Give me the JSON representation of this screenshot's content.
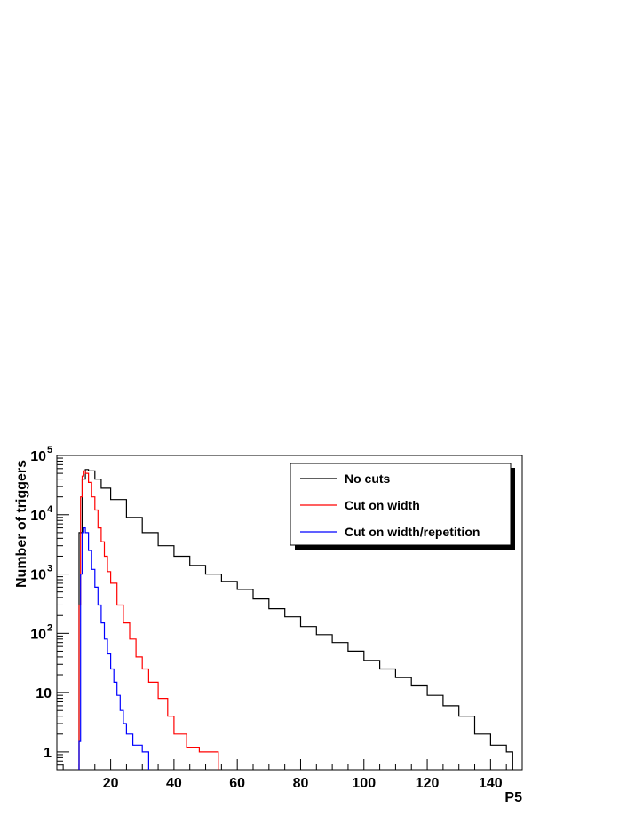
{
  "chart_data": {
    "type": "line",
    "title": "",
    "xlabel": "P5",
    "ylabel": "Number of triggers",
    "xlim": [
      3,
      150
    ],
    "ylim": [
      0.5,
      100000
    ],
    "y_scale": "log",
    "grid": false,
    "legend_position": "top-right",
    "x_ticks": [
      20,
      40,
      60,
      80,
      100,
      120,
      140
    ],
    "x_tick_labels": [
      "20",
      "40",
      "60",
      "80",
      "100",
      "120",
      "140"
    ],
    "y_ticks": [
      {
        "value": 1,
        "base": "1",
        "exp": ""
      },
      {
        "value": 10,
        "base": "10",
        "exp": ""
      },
      {
        "value": 100,
        "base": "10",
        "exp": "2"
      },
      {
        "value": 1000,
        "base": "10",
        "exp": "3"
      },
      {
        "value": 10000,
        "base": "10",
        "exp": "4"
      },
      {
        "value": 100000,
        "base": "10",
        "exp": "5"
      }
    ],
    "series": [
      {
        "name": "No cuts",
        "color": "#000000",
        "points": [
          [
            10,
            5000
          ],
          [
            11,
            40000
          ],
          [
            12,
            58000
          ],
          [
            13,
            55000
          ],
          [
            15,
            40000
          ],
          [
            17,
            28000
          ],
          [
            20,
            18000
          ],
          [
            25,
            9000
          ],
          [
            30,
            5000
          ],
          [
            35,
            3000
          ],
          [
            40,
            2000
          ],
          [
            45,
            1400
          ],
          [
            50,
            1000
          ],
          [
            55,
            750
          ],
          [
            60,
            550
          ],
          [
            65,
            380
          ],
          [
            70,
            260
          ],
          [
            75,
            190
          ],
          [
            80,
            130
          ],
          [
            85,
            95
          ],
          [
            90,
            70
          ],
          [
            95,
            50
          ],
          [
            100,
            35
          ],
          [
            105,
            25
          ],
          [
            110,
            18
          ],
          [
            115,
            13
          ],
          [
            120,
            9
          ],
          [
            125,
            6
          ],
          [
            130,
            4
          ],
          [
            135,
            2
          ],
          [
            140,
            1.3
          ],
          [
            145,
            1
          ]
        ]
      },
      {
        "name": "Cut on width",
        "color": "#ff0000",
        "points": [
          [
            10,
            300
          ],
          [
            10.5,
            20000
          ],
          [
            11,
            45000
          ],
          [
            11.5,
            55000
          ],
          [
            12,
            50000
          ],
          [
            13,
            35000
          ],
          [
            14,
            20000
          ],
          [
            15,
            12000
          ],
          [
            16,
            6000
          ],
          [
            17,
            3500
          ],
          [
            18,
            2000
          ],
          [
            19,
            1100
          ],
          [
            20,
            700
          ],
          [
            22,
            300
          ],
          [
            24,
            150
          ],
          [
            26,
            80
          ],
          [
            28,
            40
          ],
          [
            30,
            25
          ],
          [
            32,
            15
          ],
          [
            35,
            8
          ],
          [
            38,
            4
          ],
          [
            40,
            2
          ],
          [
            44,
            1.2
          ],
          [
            48,
            1
          ],
          [
            52,
            1
          ]
        ]
      },
      {
        "name": "Cut on width/repetition",
        "color": "#0000ff",
        "points": [
          [
            10,
            1.5
          ],
          [
            10.5,
            1000
          ],
          [
            11,
            5000
          ],
          [
            11.5,
            6000
          ],
          [
            12,
            5000
          ],
          [
            13,
            2500
          ],
          [
            14,
            1200
          ],
          [
            15,
            600
          ],
          [
            16,
            300
          ],
          [
            17,
            150
          ],
          [
            18,
            80
          ],
          [
            19,
            45
          ],
          [
            20,
            25
          ],
          [
            21,
            15
          ],
          [
            22,
            9
          ],
          [
            23,
            5
          ],
          [
            24,
            3
          ],
          [
            25,
            2
          ],
          [
            27,
            1.3
          ],
          [
            30,
            1
          ]
        ]
      }
    ]
  }
}
